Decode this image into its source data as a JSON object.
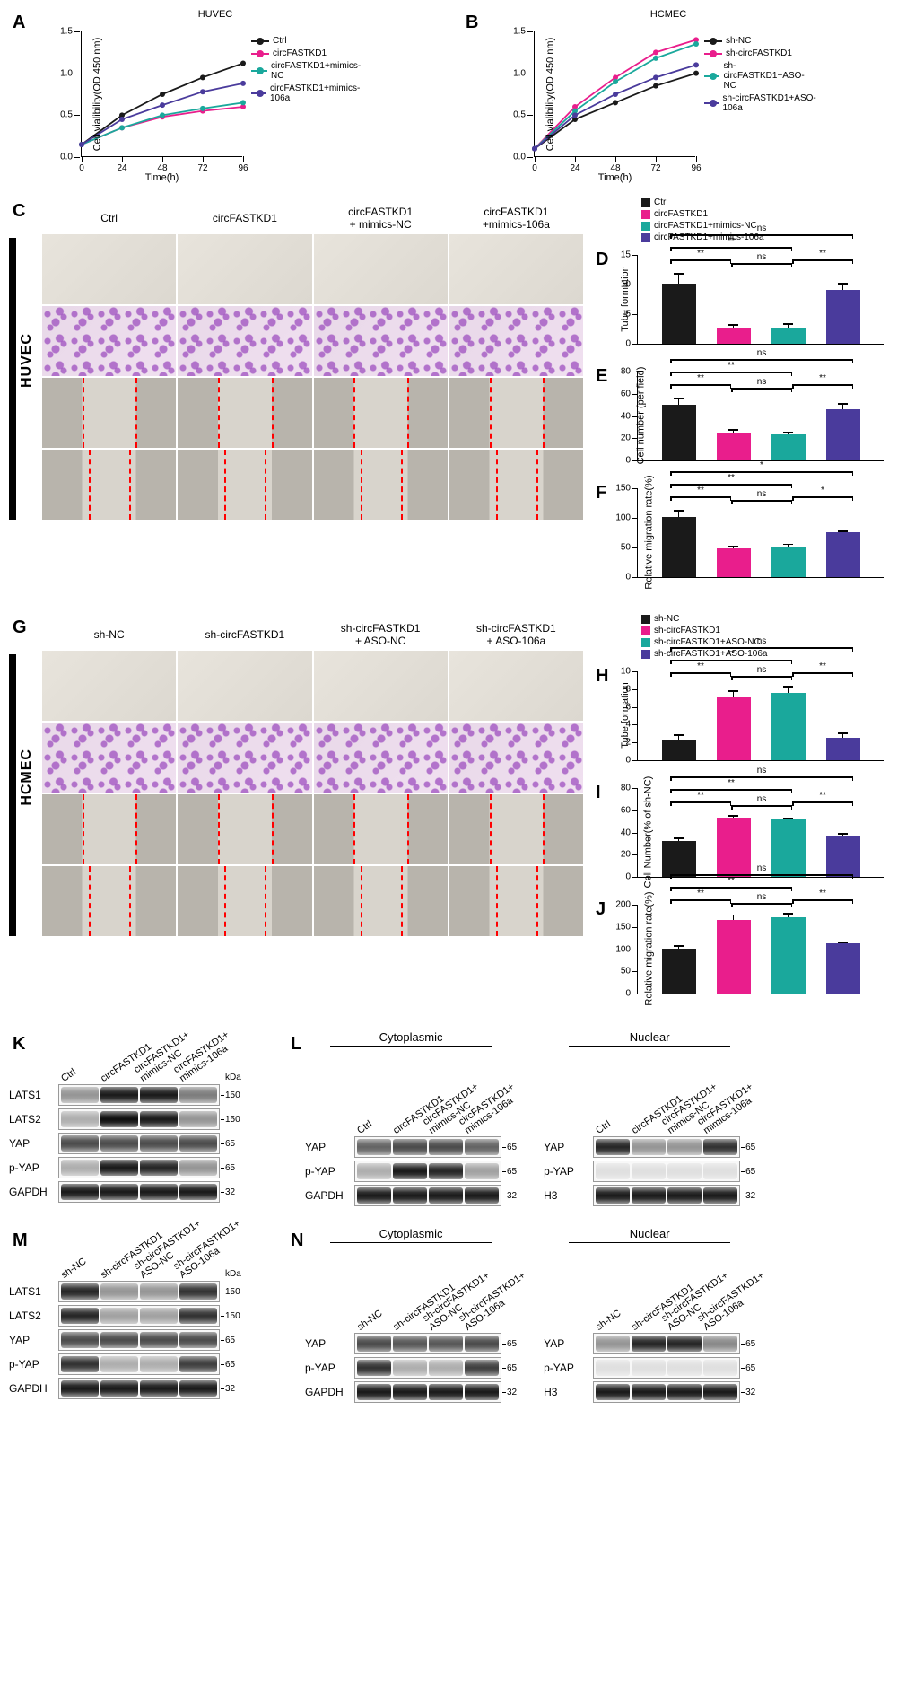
{
  "colors": {
    "ctrl": "#1a1a1a",
    "circ": "#e91e8c",
    "circ_nc": "#1aa89c",
    "circ_106a": "#4a3b9c"
  },
  "panel_A": {
    "label": "A",
    "title": "HUVEC",
    "ylabel": "Cell vialibility(OD 450 nm)",
    "xlabel": "Time(h)",
    "ylim": [
      0,
      1.5
    ],
    "ytick_step": 0.5,
    "xlim": [
      0,
      96
    ],
    "xtick_step": 24,
    "legend": [
      "Ctrl",
      "circFASTKD1",
      "circFASTKD1+mimics-NC",
      "circFASTKD1+mimics-106a"
    ],
    "series": [
      {
        "color": "#1a1a1a",
        "points": [
          [
            0,
            0.15
          ],
          [
            24,
            0.5
          ],
          [
            48,
            0.75
          ],
          [
            72,
            0.95
          ],
          [
            96,
            1.12
          ]
        ]
      },
      {
        "color": "#e91e8c",
        "points": [
          [
            0,
            0.15
          ],
          [
            24,
            0.35
          ],
          [
            48,
            0.48
          ],
          [
            72,
            0.55
          ],
          [
            96,
            0.6
          ]
        ]
      },
      {
        "color": "#1aa89c",
        "points": [
          [
            0,
            0.15
          ],
          [
            24,
            0.35
          ],
          [
            48,
            0.5
          ],
          [
            72,
            0.58
          ],
          [
            96,
            0.65
          ]
        ]
      },
      {
        "color": "#4a3b9c",
        "points": [
          [
            0,
            0.15
          ],
          [
            24,
            0.45
          ],
          [
            48,
            0.62
          ],
          [
            72,
            0.78
          ],
          [
            96,
            0.88
          ]
        ]
      }
    ]
  },
  "panel_B": {
    "label": "B",
    "title": "HCMEC",
    "ylabel": "Cell vialibility(OD 450 nm)",
    "xlabel": "Time(h)",
    "ylim": [
      0,
      1.5
    ],
    "ytick_step": 0.5,
    "xlim": [
      0,
      96
    ],
    "xtick_step": 24,
    "legend": [
      "sh-NC",
      "sh-circFASTKD1",
      "sh-circFASTKD1+ASO-NC",
      "sh-circFASTKD1+ASO-106a"
    ],
    "series": [
      {
        "color": "#1a1a1a",
        "points": [
          [
            0,
            0.1
          ],
          [
            24,
            0.45
          ],
          [
            48,
            0.65
          ],
          [
            72,
            0.85
          ],
          [
            96,
            1.0
          ]
        ]
      },
      {
        "color": "#e91e8c",
        "points": [
          [
            0,
            0.1
          ],
          [
            24,
            0.6
          ],
          [
            48,
            0.95
          ],
          [
            72,
            1.25
          ],
          [
            96,
            1.4
          ]
        ]
      },
      {
        "color": "#1aa89c",
        "points": [
          [
            0,
            0.1
          ],
          [
            24,
            0.55
          ],
          [
            48,
            0.9
          ],
          [
            72,
            1.18
          ],
          [
            96,
            1.35
          ]
        ]
      },
      {
        "color": "#4a3b9c",
        "points": [
          [
            0,
            0.1
          ],
          [
            24,
            0.5
          ],
          [
            48,
            0.75
          ],
          [
            72,
            0.95
          ],
          [
            96,
            1.1
          ]
        ]
      }
    ]
  },
  "panel_C": {
    "label": "C",
    "side": "HUVEC",
    "cols": [
      "Ctrl",
      "circFASTKD1",
      "circFASTKD1\n+ mimics-NC",
      "circFASTKD1\n+mimics-106a"
    ]
  },
  "bars_DEF_legend": [
    "Ctrl",
    "circFASTKD1",
    "circFASTKD1+mimics-NC",
    "circFASTKD1+mimics-106a"
  ],
  "panel_D": {
    "label": "D",
    "ylabel": "Tube formation",
    "ylim": [
      0,
      15
    ],
    "yticks": [
      0,
      5,
      10,
      15
    ],
    "values": [
      10,
      2.5,
      2.6,
      9
    ],
    "errors": [
      1.8,
      0.8,
      0.8,
      1.2
    ],
    "sig": [
      [
        "**",
        0,
        1
      ],
      [
        "ns",
        1,
        2
      ],
      [
        "**",
        2,
        3
      ],
      [
        "**",
        0,
        2
      ],
      [
        "ns",
        0,
        3
      ]
    ]
  },
  "panel_E": {
    "label": "E",
    "ylabel": "Cell number (per field)",
    "ylim": [
      0,
      80
    ],
    "yticks": [
      0,
      20,
      40,
      60,
      80
    ],
    "values": [
      50,
      25,
      23,
      46
    ],
    "errors": [
      6,
      3,
      3,
      5
    ],
    "sig": [
      [
        "**",
        0,
        1
      ],
      [
        "ns",
        1,
        2
      ],
      [
        "**",
        2,
        3
      ],
      [
        "**",
        0,
        2
      ],
      [
        "ns",
        0,
        3
      ]
    ]
  },
  "panel_F": {
    "label": "F",
    "ylabel": "Relative migration rate(%)",
    "ylim": [
      0,
      150
    ],
    "yticks": [
      0,
      50,
      100,
      150
    ],
    "values": [
      100,
      48,
      50,
      75
    ],
    "errors": [
      12,
      5,
      6,
      3
    ],
    "sig": [
      [
        "**",
        0,
        1
      ],
      [
        "ns",
        1,
        2
      ],
      [
        "*",
        2,
        3
      ],
      [
        "**",
        0,
        2
      ],
      [
        "*",
        0,
        3
      ]
    ]
  },
  "panel_G": {
    "label": "G",
    "side": "HCMEC",
    "cols": [
      "sh-NC",
      "sh-circFASTKD1",
      "sh-circFASTKD1\n+ ASO-NC",
      "sh-circFASTKD1\n+ ASO-106a"
    ]
  },
  "bars_HIJ_legend": [
    "sh-NC",
    "sh-circFASTKD1",
    "sh-circFASTKD1+ASO-NC",
    "sh-circFASTKD1+ASO-106a"
  ],
  "panel_H": {
    "label": "H",
    "ylabel": "Tube formation",
    "ylim": [
      0,
      10
    ],
    "yticks": [
      0,
      2,
      4,
      6,
      8,
      10
    ],
    "values": [
      2.3,
      7,
      7.5,
      2.5
    ],
    "errors": [
      0.6,
      0.8,
      0.8,
      0.6
    ],
    "sig": [
      [
        "**",
        0,
        1
      ],
      [
        "ns",
        1,
        2
      ],
      [
        "**",
        2,
        3
      ],
      [
        "**",
        0,
        2
      ],
      [
        "ns",
        0,
        3
      ]
    ]
  },
  "panel_I": {
    "label": "I",
    "ylabel": "Cell Number(% of sh-NC)",
    "ylim": [
      0,
      80
    ],
    "yticks": [
      0,
      20,
      40,
      60,
      80
    ],
    "values": [
      32,
      53,
      51,
      36
    ],
    "errors": [
      3,
      2,
      2,
      3
    ],
    "sig": [
      [
        "**",
        0,
        1
      ],
      [
        "ns",
        1,
        2
      ],
      [
        "**",
        2,
        3
      ],
      [
        "**",
        0,
        2
      ],
      [
        "ns",
        0,
        3
      ]
    ]
  },
  "panel_J": {
    "label": "J",
    "ylabel": "Relative migration rate(%)",
    "ylim": [
      0,
      200
    ],
    "yticks": [
      0,
      50,
      100,
      150,
      200
    ],
    "values": [
      100,
      165,
      170,
      112
    ],
    "errors": [
      8,
      12,
      10,
      4
    ],
    "sig": [
      [
        "**",
        0,
        1
      ],
      [
        "ns",
        1,
        2
      ],
      [
        "**",
        2,
        3
      ],
      [
        "**",
        0,
        2
      ],
      [
        "ns",
        0,
        3
      ]
    ]
  },
  "panel_K": {
    "label": "K",
    "lanes": [
      "Ctrl",
      "circFASTKD1",
      "circFASTKD1+\nmimics-NC",
      "circFASTKD1+\nmimics-106a"
    ],
    "rows": [
      {
        "name": "LATS1",
        "kda": "150",
        "intensity": [
          0.4,
          0.9,
          0.9,
          0.5
        ]
      },
      {
        "name": "LATS2",
        "kda": "150",
        "intensity": [
          0.3,
          0.95,
          0.9,
          0.4
        ]
      },
      {
        "name": "YAP",
        "kda": "65",
        "intensity": [
          0.7,
          0.7,
          0.7,
          0.7
        ]
      },
      {
        "name": "p-YAP",
        "kda": "65",
        "intensity": [
          0.3,
          0.9,
          0.85,
          0.4
        ]
      },
      {
        "name": "GAPDH",
        "kda": "32",
        "intensity": [
          0.9,
          0.9,
          0.9,
          0.9
        ]
      }
    ]
  },
  "panel_L": {
    "label": "L",
    "lanes": [
      "Ctrl",
      "circFASTKD1",
      "circFASTKD1+\nmimics-NC",
      "circFASTKD1+\nmimics-106a"
    ],
    "cyto_title": "Cytoplasmic",
    "nuc_title": "Nuclear",
    "cyto_rows": [
      {
        "name": "YAP",
        "kda": "65",
        "intensity": [
          0.6,
          0.7,
          0.7,
          0.6
        ]
      },
      {
        "name": "p-YAP",
        "kda": "65",
        "intensity": [
          0.3,
          0.9,
          0.85,
          0.35
        ]
      },
      {
        "name": "GAPDH",
        "kda": "32",
        "intensity": [
          0.9,
          0.9,
          0.9,
          0.9
        ]
      }
    ],
    "nuc_rows": [
      {
        "name": "YAP",
        "kda": "65",
        "intensity": [
          0.85,
          0.4,
          0.4,
          0.8
        ]
      },
      {
        "name": "p-YAP",
        "kda": "65",
        "intensity": [
          0.1,
          0.1,
          0.1,
          0.1
        ]
      },
      {
        "name": "H3",
        "kda": "32",
        "intensity": [
          0.9,
          0.9,
          0.9,
          0.9
        ]
      }
    ]
  },
  "panel_M": {
    "label": "M",
    "lanes": [
      "sh-NC",
      "sh-circFASTKD1",
      "sh-circFASTKD1+\nASO-NC",
      "sh-circFASTKD1+\nASO-106a"
    ],
    "rows": [
      {
        "name": "LATS1",
        "kda": "150",
        "intensity": [
          0.85,
          0.4,
          0.4,
          0.8
        ]
      },
      {
        "name": "LATS2",
        "kda": "150",
        "intensity": [
          0.85,
          0.35,
          0.35,
          0.8
        ]
      },
      {
        "name": "YAP",
        "kda": "65",
        "intensity": [
          0.7,
          0.7,
          0.7,
          0.7
        ]
      },
      {
        "name": "p-YAP",
        "kda": "65",
        "intensity": [
          0.8,
          0.3,
          0.3,
          0.75
        ]
      },
      {
        "name": "GAPDH",
        "kda": "32",
        "intensity": [
          0.9,
          0.9,
          0.9,
          0.9
        ]
      }
    ]
  },
  "panel_N": {
    "label": "N",
    "lanes": [
      "sh-NC",
      "sh-circFASTKD1",
      "sh-circFASTKD1+\nASO-NC",
      "sh-circFASTKD1+\nASO-106a"
    ],
    "cyto_title": "Cytoplasmic",
    "nuc_title": "Nuclear",
    "cyto_rows": [
      {
        "name": "YAP",
        "kda": "65",
        "intensity": [
          0.7,
          0.65,
          0.65,
          0.7
        ]
      },
      {
        "name": "p-YAP",
        "kda": "65",
        "intensity": [
          0.8,
          0.3,
          0.3,
          0.75
        ]
      },
      {
        "name": "GAPDH",
        "kda": "32",
        "intensity": [
          0.9,
          0.9,
          0.9,
          0.9
        ]
      }
    ],
    "nuc_rows": [
      {
        "name": "YAP",
        "kda": "65",
        "intensity": [
          0.4,
          0.85,
          0.85,
          0.45
        ]
      },
      {
        "name": "p-YAP",
        "kda": "65",
        "intensity": [
          0.1,
          0.1,
          0.1,
          0.1
        ]
      },
      {
        "name": "H3",
        "kda": "32",
        "intensity": [
          0.9,
          0.9,
          0.9,
          0.9
        ]
      }
    ]
  }
}
